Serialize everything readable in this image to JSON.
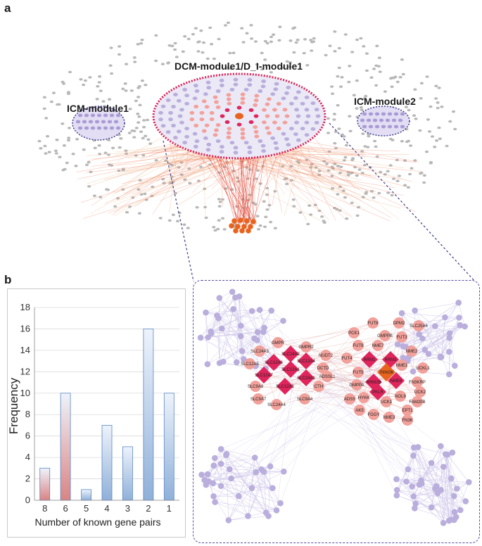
{
  "panel_a": {
    "letter": "a",
    "labels": {
      "center": "DCM-module1/D_I-module1",
      "left": "ICM-module1",
      "right": "ICM-module2"
    }
  },
  "panel_b": {
    "letter": "b"
  },
  "chart_data": {
    "type": "bar",
    "title": "",
    "xlabel": "Number of known gene pairs",
    "ylabel": "Frequency",
    "categories": [
      "8",
      "6",
      "5",
      "4",
      "3",
      "2",
      "1"
    ],
    "values": [
      3,
      10,
      1,
      7,
      5,
      16,
      10
    ],
    "highlight": [
      "8",
      "6"
    ],
    "ylim": [
      0,
      18
    ],
    "yticks": [
      "0",
      "2",
      "4",
      "6",
      "8",
      "10",
      "12",
      "14",
      "16",
      "18"
    ]
  },
  "network": {
    "genes": [
      "GMPR",
      "GMPR2",
      "SLC24A3",
      "SLC24A2",
      "SLC12A5",
      "SLC12A6",
      "SLC12A4",
      "SLC12A1",
      "SLC12A7",
      "SLC24A1",
      "SLC9A8",
      "SLC12A2",
      "SLC9A7",
      "SLC24A4",
      "SLC9A4",
      "CTH",
      "DCTD",
      "NUDT2",
      "ADSSL1",
      "FUT8",
      "DPM2",
      "SLC25A6",
      "PCK1",
      "GMPPB",
      "FUT3",
      "FUT9",
      "NME7",
      "FUT4",
      "RRM1",
      "RRM3",
      "NME2",
      "NME1",
      "UCKL1",
      "TNNI3K",
      "FN3KRP",
      "FUT5",
      "RRM2B",
      "NME6",
      "PKLR",
      "UCK2",
      "GMPPA",
      "HYKK",
      "NOL9",
      "ADSS",
      "FAM20B",
      "UCK1",
      "EPT1",
      "AK5",
      "FGGY",
      "NME3",
      "FN3K"
    ],
    "colors": {
      "lavender": "#b9aedc",
      "salmon": "#f2a09a",
      "crimson": "#e0245c",
      "orange": "#e8641e",
      "gray": "#b8b8b8"
    }
  }
}
